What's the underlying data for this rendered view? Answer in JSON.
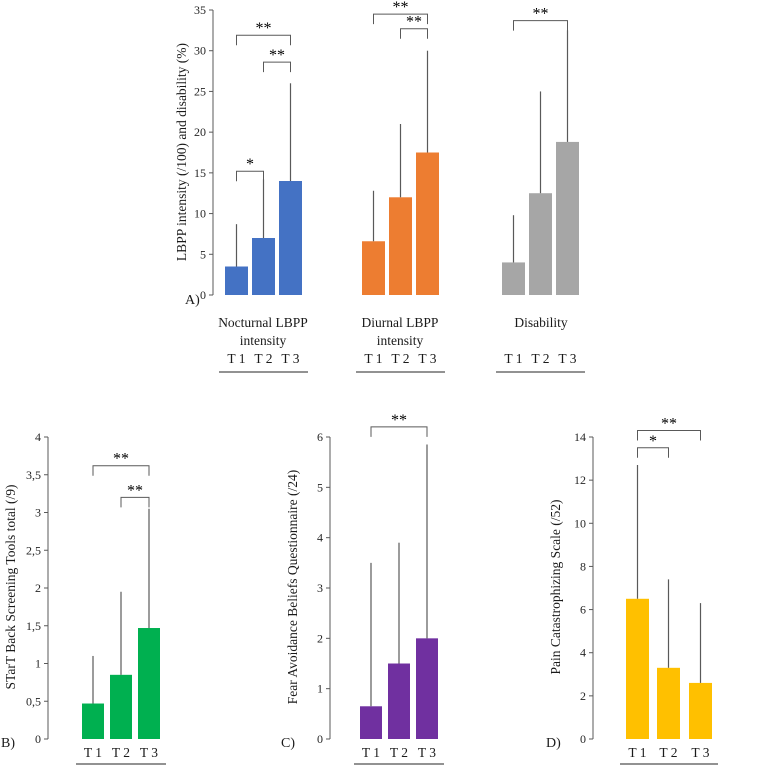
{
  "chart_data": [
    {
      "panel_label": "A)",
      "type": "bar",
      "ylabel": "LBPP intensity (/100) and disability (%)",
      "ylim": [
        0,
        35
      ],
      "yticks": [
        "0",
        "5",
        "10",
        "15",
        "20",
        "25",
        "30",
        "35"
      ],
      "categories": [
        "T 1",
        "T 2",
        "T 3"
      ],
      "groups": [
        {
          "name": "Nocturnal LBPP intensity",
          "label_lines": [
            "Nocturnal LBPP",
            "intensity"
          ],
          "color": "#4472C4",
          "bars": [
            {
              "category": "T 1",
              "value": 3.5,
              "whisker_top": 8.7
            },
            {
              "category": "T 2",
              "value": 7.0,
              "whisker_top": 14.2
            },
            {
              "category": "T 3",
              "value": 14.0,
              "whisker_top": 26.0
            }
          ]
        },
        {
          "name": "Diurnal LBPP intensity",
          "label_lines": [
            "Diurnal LBPP",
            "intensity"
          ],
          "color": "#ED7D31",
          "bars": [
            {
              "category": "T 1",
              "value": 6.6,
              "whisker_top": 12.8
            },
            {
              "category": "T 2",
              "value": 12.0,
              "whisker_top": 21.0
            },
            {
              "category": "T 3",
              "value": 17.5,
              "whisker_top": 30.0
            }
          ]
        },
        {
          "name": "Disability",
          "label_lines": [
            "Disability"
          ],
          "color": "#A6A6A6",
          "bars": [
            {
              "category": "T 1",
              "value": 4.0,
              "whisker_top": 9.8
            },
            {
              "category": "T 2",
              "value": 12.5,
              "whisker_top": 25.0
            },
            {
              "category": "T 3",
              "value": 18.8,
              "whisker_top": 32.5
            }
          ]
        }
      ],
      "significance": [
        {
          "a": [
            0,
            0
          ],
          "b": [
            0,
            1
          ],
          "label": "*",
          "y": 15.2
        },
        {
          "a": [
            0,
            1
          ],
          "b": [
            0,
            2
          ],
          "label": "**",
          "y": 28.6
        },
        {
          "a": [
            0,
            0
          ],
          "b": [
            0,
            2
          ],
          "label": "**",
          "y": 31.9
        },
        {
          "a": [
            1,
            1
          ],
          "b": [
            1,
            2
          ],
          "label": "**",
          "y": 32.7
        },
        {
          "a": [
            1,
            0
          ],
          "b": [
            1,
            2
          ],
          "label": "**",
          "y": 34.5
        },
        {
          "a": [
            2,
            0
          ],
          "b": [
            2,
            2
          ],
          "label": "**",
          "y": 33.7
        }
      ]
    },
    {
      "panel_label": "B)",
      "type": "bar",
      "ylabel": "STarT Back Screening Tools total (/9)",
      "ylim": [
        0,
        4
      ],
      "yticks": [
        "0",
        "0,5",
        "1",
        "1,5",
        "2",
        "2,5",
        "3",
        "3,5",
        "4"
      ],
      "categories": [
        "T 1",
        "T 2",
        "T 3"
      ],
      "groups": [
        {
          "color": "#00B050",
          "bars": [
            {
              "category": "T 1",
              "value": 0.47,
              "whisker_top": 1.1
            },
            {
              "category": "T 2",
              "value": 0.85,
              "whisker_top": 1.95
            },
            {
              "category": "T 3",
              "value": 1.47,
              "whisker_top": 3.05
            }
          ]
        }
      ],
      "significance": [
        {
          "a": [
            0,
            1
          ],
          "b": [
            0,
            2
          ],
          "label": "**",
          "y": 3.2
        },
        {
          "a": [
            0,
            0
          ],
          "b": [
            0,
            2
          ],
          "label": "**",
          "y": 3.62
        }
      ]
    },
    {
      "panel_label": "C)",
      "type": "bar",
      "ylabel": "Fear Avoidance Beliefs Questionnaire (/24)",
      "ylim": [
        0,
        6
      ],
      "yticks": [
        "0",
        "1",
        "2",
        "3",
        "4",
        "5",
        "6"
      ],
      "categories": [
        "T 1",
        "T 2",
        "T 3"
      ],
      "groups": [
        {
          "color": "#7030A0",
          "bars": [
            {
              "category": "T 1",
              "value": 0.65,
              "whisker_top": 3.5
            },
            {
              "category": "T 2",
              "value": 1.5,
              "whisker_top": 3.9
            },
            {
              "category": "T 3",
              "value": 2.0,
              "whisker_top": 5.85
            }
          ]
        }
      ],
      "significance": [
        {
          "a": [
            0,
            0
          ],
          "b": [
            0,
            2
          ],
          "label": "**",
          "y": 6.2
        }
      ]
    },
    {
      "panel_label": "D)",
      "type": "bar",
      "ylabel": "Pain Catastrophizing Scale (/52)",
      "ylim": [
        0,
        14
      ],
      "yticks": [
        "0",
        "2",
        "4",
        "6",
        "8",
        "10",
        "12",
        "14"
      ],
      "categories": [
        "T 1",
        "T 2",
        "T 3"
      ],
      "groups": [
        {
          "color": "#FFC000",
          "bars": [
            {
              "category": "T 1",
              "value": 6.5,
              "whisker_top": 12.7
            },
            {
              "category": "T 2",
              "value": 3.3,
              "whisker_top": 7.4
            },
            {
              "category": "T 3",
              "value": 2.6,
              "whisker_top": 6.3
            }
          ]
        }
      ],
      "significance": [
        {
          "a": [
            0,
            0
          ],
          "b": [
            0,
            1
          ],
          "label": "*",
          "y": 13.5
        },
        {
          "a": [
            0,
            0
          ],
          "b": [
            0,
            2
          ],
          "label": "**",
          "y": 14.3
        }
      ]
    }
  ]
}
